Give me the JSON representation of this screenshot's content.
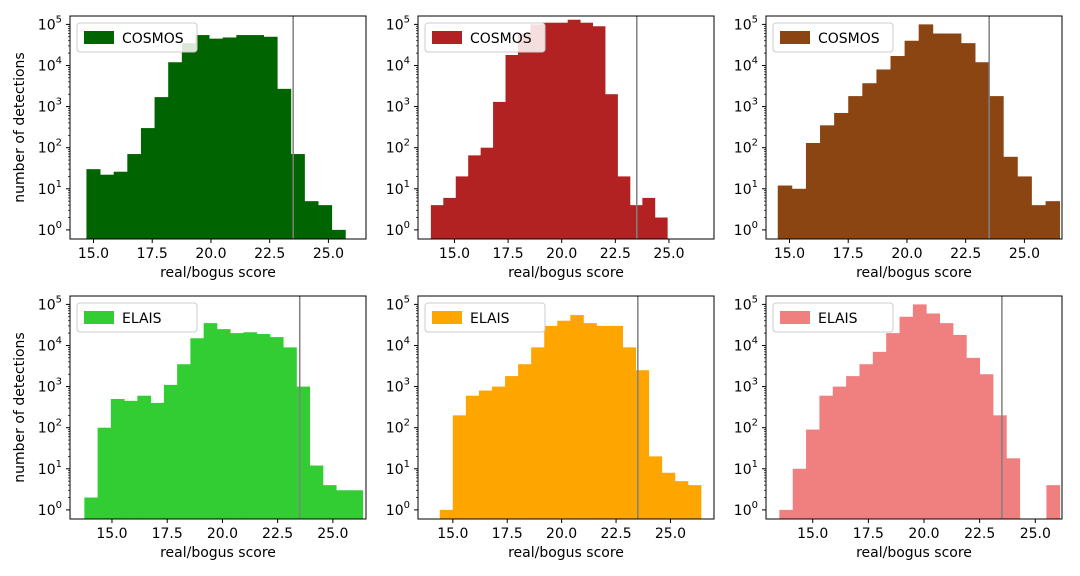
{
  "chart_data": [
    {
      "type": "bar",
      "xlabel": "real/bogus score",
      "ylabel": "number of detections",
      "yscale": "log",
      "ylim": [
        0.6,
        160000
      ],
      "xlim": [
        14.0,
        26.6
      ],
      "xticks": [
        "15.0",
        "17.5",
        "20.0",
        "22.5",
        "25.0"
      ],
      "threshold": 23.5,
      "legend": "COSMOS",
      "legend_loc": "upper-left",
      "color": "#006400",
      "bin_start": 14.7,
      "bin_width": 0.58,
      "values": [
        30,
        22,
        26,
        70,
        300,
        1700,
        12000,
        35000,
        55000,
        45000,
        48000,
        55000,
        55000,
        50000,
        2700,
        70,
        5,
        4,
        1
      ]
    },
    {
      "type": "bar",
      "xlabel": "real/bogus score",
      "ylabel": "",
      "yscale": "log",
      "ylim": [
        0.6,
        160000
      ],
      "xlim": [
        13.3,
        27.1
      ],
      "xticks": [
        "15.0",
        "17.5",
        "20.0",
        "22.5",
        "25.0"
      ],
      "threshold": 23.5,
      "legend": "COSMOS",
      "legend_loc": "upper-left",
      "color": "#b22222",
      "bin_start": 13.9,
      "bin_width": 0.58,
      "values": [
        4,
        6,
        20,
        65,
        100,
        1300,
        18000,
        60000,
        100000,
        110000,
        110000,
        130000,
        110000,
        90000,
        2000,
        20,
        4,
        6,
        2
      ]
    },
    {
      "type": "bar",
      "xlabel": "real/bogus score",
      "ylabel": "",
      "yscale": "log",
      "ylim": [
        0.6,
        160000
      ],
      "xlim": [
        14.0,
        26.6
      ],
      "xticks": [
        "15.0",
        "17.5",
        "20.0",
        "22.5",
        "25.0"
      ],
      "threshold": 23.5,
      "legend": "COSMOS",
      "legend_loc": "upper-left",
      "color": "#8b4513",
      "bin_start": 14.5,
      "bin_width": 0.6,
      "values": [
        12,
        10,
        130,
        350,
        700,
        1800,
        3700,
        8000,
        17000,
        40000,
        100000,
        60000,
        60000,
        35000,
        12000,
        1800,
        60,
        20,
        4,
        5
      ]
    },
    {
      "type": "bar",
      "xlabel": "real/bogus score",
      "ylabel": "number of detections",
      "yscale": "log",
      "ylim": [
        0.6,
        160000
      ],
      "xlim": [
        13.1,
        26.5
      ],
      "xticks": [
        "15.0",
        "17.5",
        "20.0",
        "22.5",
        "25.0"
      ],
      "threshold": 23.5,
      "legend": "ELAIS",
      "legend_loc": "upper-left",
      "color": "#32cd32",
      "bin_start": 13.75,
      "bin_width": 0.6,
      "values": [
        2,
        100,
        500,
        450,
        600,
        400,
        1100,
        3500,
        15000,
        35000,
        25000,
        20000,
        21000,
        19000,
        16000,
        9000,
        1000,
        12,
        4,
        3,
        3
      ]
    },
    {
      "type": "bar",
      "xlabel": "real/bogus score",
      "ylabel": "",
      "yscale": "log",
      "ylim": [
        0.6,
        160000
      ],
      "xlim": [
        13.4,
        27.0
      ],
      "xticks": [
        "15.0",
        "17.5",
        "20.0",
        "22.5",
        "25.0"
      ],
      "threshold": 23.5,
      "legend": "ELAIS",
      "legend_loc": "upper-left",
      "color": "#ffa500",
      "bin_start": 14.4,
      "bin_width": 0.6,
      "values": [
        1,
        200,
        600,
        800,
        1000,
        1800,
        3500,
        9000,
        30000,
        40000,
        55000,
        35000,
        30000,
        30000,
        9000,
        2500,
        20,
        8,
        5,
        4
      ]
    },
    {
      "type": "bar",
      "xlabel": "real/bogus score",
      "ylabel": "",
      "yscale": "log",
      "ylim": [
        0.6,
        160000
      ],
      "xlim": [
        12.9,
        26.2
      ],
      "xticks": [
        "15.0",
        "17.5",
        "20.0",
        "22.5",
        "25.0"
      ],
      "threshold": 23.5,
      "legend": "ELAIS",
      "legend_loc": "upper-left",
      "color": "#f08080",
      "bin_start": 13.5,
      "bin_width": 0.6,
      "values": [
        1,
        10,
        90,
        600,
        1000,
        1800,
        3500,
        7000,
        20000,
        50000,
        100000,
        60000,
        35000,
        18000,
        5000,
        2000,
        200,
        18,
        0,
        0,
        4
      ]
    }
  ]
}
